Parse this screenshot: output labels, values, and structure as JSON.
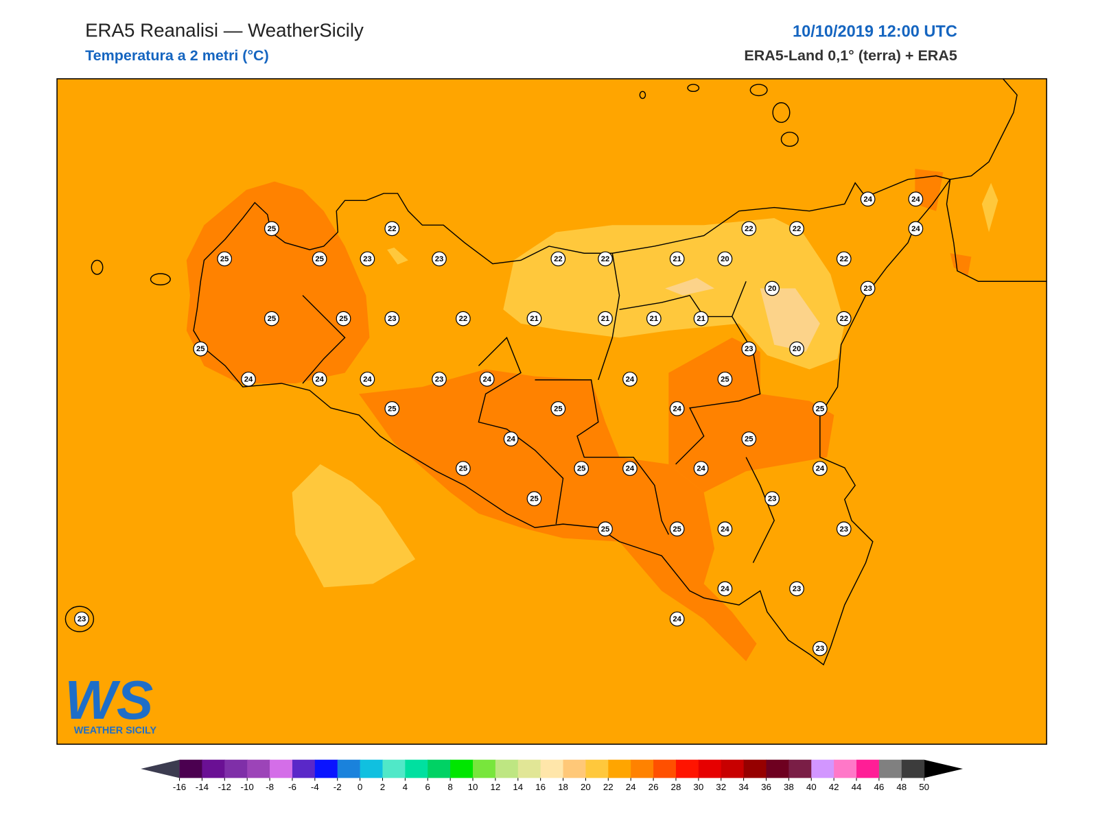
{
  "header": {
    "title": "ERA5 Reanalisi — WeatherSicily",
    "subtitle": "Temperatura a 2 metri (°C)",
    "datetime": "10/10/2019 12:00 UTC",
    "source": "ERA5-Land 0,1° (terra) + ERA5"
  },
  "logo": {
    "mark": "WS",
    "text": "WEATHER SICILY"
  },
  "stations": {
    "values": [
      25,
      22,
      25,
      25,
      23,
      23,
      25,
      25,
      23,
      22,
      25,
      24,
      24,
      24,
      23,
      24,
      25,
      25,
      24,
      25,
      25,
      24,
      25,
      25,
      25,
      22,
      22,
      21,
      20,
      21,
      21,
      21,
      21,
      22,
      22,
      20,
      23,
      20,
      24,
      25,
      24,
      25,
      24,
      25,
      24,
      23,
      24,
      23,
      24,
      23,
      24,
      23,
      23,
      24,
      24,
      24,
      22,
      23,
      22
    ]
  },
  "colorbar": {
    "ticks": [
      -16,
      -14,
      -12,
      -10,
      -8,
      -6,
      -4,
      -2,
      0,
      2,
      4,
      6,
      8,
      10,
      12,
      14,
      16,
      18,
      20,
      22,
      24,
      26,
      28,
      30,
      32,
      34,
      36,
      38,
      40,
      42,
      44,
      46,
      48,
      50
    ],
    "colors": [
      "#4b0050",
      "#6a1094",
      "#7f2fa8",
      "#9c44b8",
      "#d46ee8",
      "#5a28c8",
      "#0a14ff",
      "#1a82dc",
      "#10c0e0",
      "#50e8c8",
      "#00e0a0",
      "#00d264",
      "#00e600",
      "#78e63c",
      "#bee682",
      "#e1e696",
      "#ffe6aa",
      "#ffc878",
      "#ffc83c",
      "#ffa500",
      "#ff8200",
      "#ff5000",
      "#ff1400",
      "#e60000",
      "#c80000",
      "#960000",
      "#6e0020",
      "#7a1e46",
      "#d296ff",
      "#ff78c8",
      "#ff1e96",
      "#808080",
      "#3c3c3c"
    ],
    "under_color": "#3c3c50",
    "over_color": "#000000"
  }
}
